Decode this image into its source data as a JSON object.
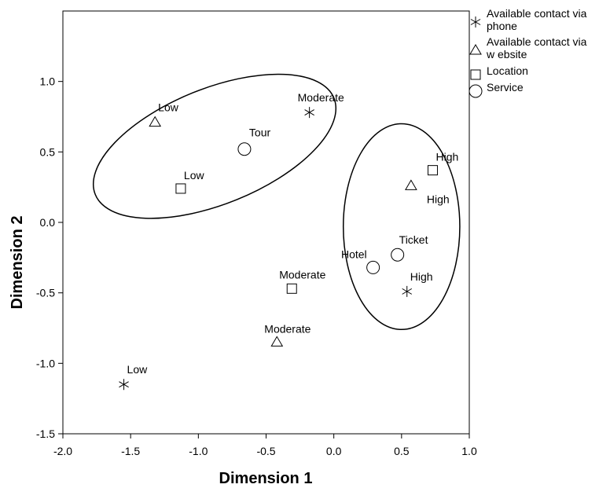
{
  "chart_data": {
    "type": "scatter",
    "xlabel": "Dimension 1",
    "ylabel": "Dimension 2",
    "xlim": [
      -2.0,
      1.0
    ],
    "ylim": [
      -1.5,
      1.5
    ],
    "x_ticks": [
      "-2.0",
      "-1.5",
      "-1.0",
      "-0.5",
      "0.0",
      "0.5",
      "1.0"
    ],
    "y_ticks": [
      "1.0",
      "0.5",
      "0.0",
      "-0.5",
      "-1.0",
      "-1.5"
    ],
    "grid": false,
    "legend_position": "right-top",
    "legend": [
      {
        "marker": "star",
        "lines": [
          "Available contact via",
          "phone"
        ]
      },
      {
        "marker": "triangle",
        "lines": [
          "Available contact via",
          "w ebsite"
        ]
      },
      {
        "marker": "square",
        "lines": [
          "Location"
        ]
      },
      {
        "marker": "circle",
        "lines": [
          "Service"
        ]
      }
    ],
    "series": [
      {
        "marker": "star",
        "points": [
          {
            "x": -1.55,
            "y": -1.15,
            "label": "Low"
          },
          {
            "x": -0.18,
            "y": 0.78,
            "label": "Moderate"
          },
          {
            "x": 0.54,
            "y": -0.49,
            "label": "High"
          }
        ]
      },
      {
        "marker": "triangle",
        "points": [
          {
            "x": -1.32,
            "y": 0.71,
            "label": "Low"
          },
          {
            "x": -0.42,
            "y": -0.85,
            "label": "Moderate"
          },
          {
            "x": 0.57,
            "y": 0.26,
            "label": "High"
          }
        ]
      },
      {
        "marker": "square",
        "points": [
          {
            "x": -1.13,
            "y": 0.24,
            "label": "Low"
          },
          {
            "x": -0.31,
            "y": -0.47,
            "label": "Moderate"
          },
          {
            "x": 0.73,
            "y": 0.37,
            "label": "High"
          }
        ]
      },
      {
        "marker": "circle",
        "points": [
          {
            "x": -0.66,
            "y": 0.52,
            "label": "Tour"
          },
          {
            "x": 0.29,
            "y": -0.32,
            "label": "Hotel"
          },
          {
            "x": 0.47,
            "y": -0.23,
            "label": "Ticket"
          }
        ]
      }
    ],
    "ellipses": [
      {
        "cx": -0.88,
        "cy": 0.54,
        "rx": 0.95,
        "ry": 0.41,
        "angle_deg": 22
      },
      {
        "cx": 0.5,
        "cy": -0.03,
        "rx": 0.43,
        "ry": 0.73,
        "angle_deg": 0
      }
    ]
  }
}
